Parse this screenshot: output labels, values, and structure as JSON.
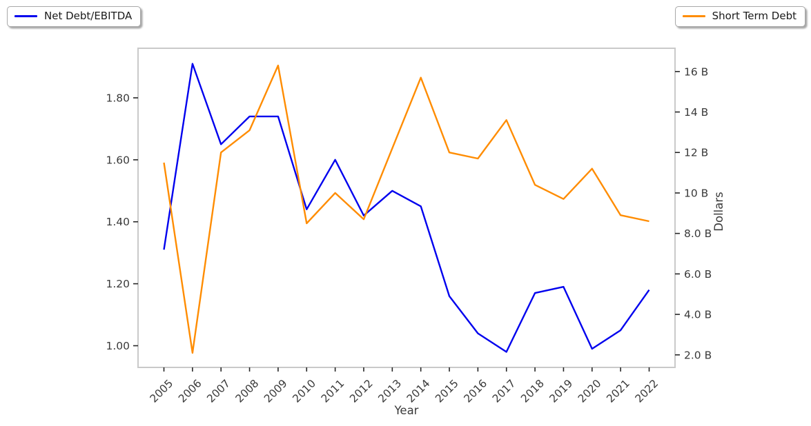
{
  "legend_left": {
    "label": "Net Debt/EBITDA",
    "color": "#0000ee"
  },
  "legend_right": {
    "label": "Short Term Debt",
    "color": "#ff8c00"
  },
  "chart_data": {
    "type": "line",
    "categories": [
      "2005",
      "2006",
      "2007",
      "2008",
      "2009",
      "2010",
      "2011",
      "2012",
      "2013",
      "2014",
      "2015",
      "2016",
      "2017",
      "2018",
      "2019",
      "2020",
      "2021",
      "2022"
    ],
    "series": [
      {
        "name": "Net Debt/EBITDA",
        "axis": "left",
        "color": "#0000ee",
        "values": [
          1.31,
          1.91,
          1.65,
          1.74,
          1.74,
          1.44,
          1.6,
          1.42,
          1.5,
          1.45,
          1.16,
          1.04,
          0.98,
          1.17,
          1.19,
          0.99,
          1.05,
          1.18
        ]
      },
      {
        "name": "Short Term Debt",
        "axis": "right",
        "color": "#ff8c00",
        "values": [
          11.5,
          2.1,
          12.0,
          13.1,
          16.3,
          8.5,
          10.0,
          8.7,
          12.2,
          15.7,
          12.0,
          11.7,
          13.6,
          10.4,
          9.7,
          11.2,
          8.9,
          8.6
        ]
      }
    ],
    "title": "",
    "xlabel": "Year",
    "ylabel_left": "",
    "ylabel_right": "Dollars",
    "left_axis": {
      "ticks": [
        1.0,
        1.2,
        1.4,
        1.6,
        1.8
      ],
      "tick_labels": [
        "1.00",
        "1.20",
        "1.40",
        "1.60",
        "1.80"
      ],
      "range": [
        0.93,
        1.96
      ]
    },
    "right_axis": {
      "ticks": [
        2,
        4,
        6,
        8,
        10,
        12,
        14,
        16
      ],
      "tick_labels": [
        "2.0 B",
        "4.0 B",
        "6.0 B",
        "8.0 B",
        "10 B",
        "12 B",
        "14 B",
        "16 B"
      ],
      "range": [
        1.38,
        17.15
      ]
    },
    "grid": false,
    "legend_position": "top-left and top-right, outside axes"
  }
}
